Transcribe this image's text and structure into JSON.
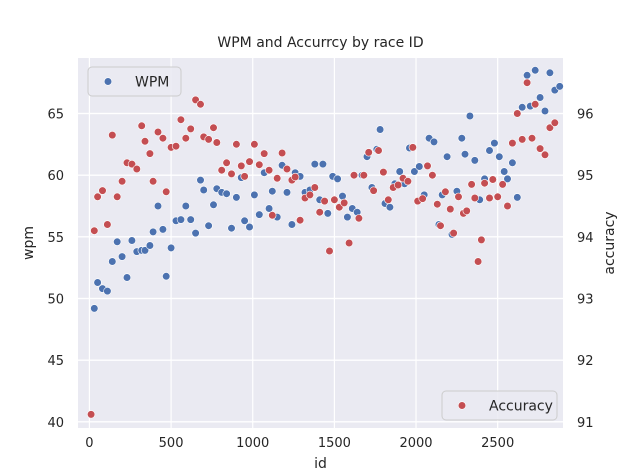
{
  "chart_data": {
    "type": "scatter",
    "title": "WPM and Accurrcy by race ID",
    "xlabel": "id",
    "ylabel_left": "wpm",
    "ylabel_right": "accuracy",
    "xlim": [
      -70,
      2900
    ],
    "ylim_left": [
      39.5,
      69.5
    ],
    "ylim_right": [
      90.9,
      96.9
    ],
    "x_ticks": [
      0,
      500,
      1000,
      1500,
      2000,
      2500
    ],
    "x_tick_labels": [
      "0",
      "500",
      "1000",
      "1500",
      "2000",
      "2500"
    ],
    "y_left_ticks": [
      40,
      45,
      50,
      55,
      60,
      65
    ],
    "y_left_tick_labels": [
      "40",
      "45",
      "50",
      "55",
      "60",
      "65"
    ],
    "y_right_ticks": [
      91,
      92,
      93,
      94,
      95,
      96
    ],
    "y_right_tick_labels": [
      "91",
      "92",
      "93",
      "94",
      "95",
      "96"
    ],
    "grid": true,
    "background": "#eaeaf2",
    "series": [
      {
        "name": "WPM",
        "axis": "left",
        "color": "#4c72b0",
        "legend_position": "top-left",
        "points": [
          [
            30,
            49.2
          ],
          [
            50,
            51.3
          ],
          [
            80,
            50.8
          ],
          [
            110,
            50.6
          ],
          [
            140,
            53.0
          ],
          [
            170,
            54.6
          ],
          [
            200,
            53.4
          ],
          [
            230,
            51.7
          ],
          [
            260,
            54.7
          ],
          [
            290,
            53.8
          ],
          [
            320,
            53.9
          ],
          [
            340,
            53.9
          ],
          [
            370,
            54.3
          ],
          [
            390,
            55.4
          ],
          [
            420,
            57.5
          ],
          [
            450,
            55.6
          ],
          [
            470,
            51.8
          ],
          [
            500,
            54.1
          ],
          [
            530,
            56.3
          ],
          [
            560,
            56.4
          ],
          [
            590,
            57.5
          ],
          [
            620,
            56.4
          ],
          [
            650,
            55.3
          ],
          [
            680,
            59.6
          ],
          [
            700,
            58.8
          ],
          [
            730,
            55.9
          ],
          [
            760,
            57.6
          ],
          [
            780,
            58.9
          ],
          [
            810,
            58.6
          ],
          [
            840,
            58.5
          ],
          [
            870,
            55.7
          ],
          [
            900,
            58.2
          ],
          [
            930,
            59.8
          ],
          [
            950,
            56.3
          ],
          [
            980,
            55.8
          ],
          [
            1010,
            58.4
          ],
          [
            1040,
            56.8
          ],
          [
            1070,
            60.2
          ],
          [
            1100,
            57.3
          ],
          [
            1120,
            58.7
          ],
          [
            1150,
            56.6
          ],
          [
            1180,
            60.8
          ],
          [
            1210,
            58.6
          ],
          [
            1240,
            56.0
          ],
          [
            1260,
            60.2
          ],
          [
            1290,
            59.9
          ],
          [
            1320,
            58.6
          ],
          [
            1350,
            58.8
          ],
          [
            1380,
            60.9
          ],
          [
            1410,
            58.0
          ],
          [
            1430,
            60.9
          ],
          [
            1460,
            56.9
          ],
          [
            1490,
            59.9
          ],
          [
            1520,
            59.7
          ],
          [
            1550,
            58.3
          ],
          [
            1580,
            56.6
          ],
          [
            1610,
            57.3
          ],
          [
            1640,
            57.0
          ],
          [
            1670,
            60.0
          ],
          [
            1700,
            61.5
          ],
          [
            1730,
            59.0
          ],
          [
            1760,
            62.1
          ],
          [
            1780,
            63.7
          ],
          [
            1810,
            57.7
          ],
          [
            1840,
            57.4
          ],
          [
            1870,
            59.3
          ],
          [
            1900,
            60.3
          ],
          [
            1930,
            59.3
          ],
          [
            1960,
            62.2
          ],
          [
            1990,
            60.3
          ],
          [
            2020,
            60.7
          ],
          [
            2050,
            58.4
          ],
          [
            2080,
            63.0
          ],
          [
            2110,
            62.7
          ],
          [
            2140,
            56.0
          ],
          [
            2160,
            58.4
          ],
          [
            2190,
            61.5
          ],
          [
            2220,
            55.2
          ],
          [
            2250,
            58.7
          ],
          [
            2280,
            63.0
          ],
          [
            2300,
            61.7
          ],
          [
            2330,
            64.8
          ],
          [
            2360,
            61.2
          ],
          [
            2390,
            58.0
          ],
          [
            2420,
            59.7
          ],
          [
            2450,
            62.0
          ],
          [
            2480,
            62.6
          ],
          [
            2510,
            61.5
          ],
          [
            2540,
            60.3
          ],
          [
            2560,
            59.7
          ],
          [
            2590,
            61.0
          ],
          [
            2620,
            58.2
          ],
          [
            2650,
            65.5
          ],
          [
            2680,
            68.1
          ],
          [
            2700,
            65.6
          ],
          [
            2730,
            68.5
          ],
          [
            2760,
            66.3
          ],
          [
            2790,
            65.2
          ],
          [
            2820,
            68.3
          ],
          [
            2850,
            66.9
          ],
          [
            2880,
            67.2
          ]
        ]
      },
      {
        "name": "Accuracy",
        "axis": "right",
        "color": "#c44e52",
        "legend_position": "bottom-right",
        "points": [
          [
            10,
            91.12
          ],
          [
            30,
            94.1
          ],
          [
            50,
            94.65
          ],
          [
            80,
            94.75
          ],
          [
            110,
            94.2
          ],
          [
            140,
            95.65
          ],
          [
            170,
            94.65
          ],
          [
            200,
            94.9
          ],
          [
            230,
            95.2
          ],
          [
            260,
            95.18
          ],
          [
            290,
            95.1
          ],
          [
            320,
            95.8
          ],
          [
            340,
            95.55
          ],
          [
            370,
            95.35
          ],
          [
            390,
            94.9
          ],
          [
            420,
            95.7
          ],
          [
            450,
            95.6
          ],
          [
            470,
            94.73
          ],
          [
            500,
            95.45
          ],
          [
            530,
            95.47
          ],
          [
            560,
            95.9
          ],
          [
            590,
            95.6
          ],
          [
            620,
            95.75
          ],
          [
            650,
            96.22
          ],
          [
            680,
            96.15
          ],
          [
            700,
            95.62
          ],
          [
            730,
            95.58
          ],
          [
            760,
            95.77
          ],
          [
            780,
            95.53
          ],
          [
            810,
            95.08
          ],
          [
            840,
            95.2
          ],
          [
            870,
            95.02
          ],
          [
            900,
            95.5
          ],
          [
            930,
            95.15
          ],
          [
            950,
            94.98
          ],
          [
            980,
            95.22
          ],
          [
            1010,
            95.5
          ],
          [
            1040,
            95.17
          ],
          [
            1070,
            95.35
          ],
          [
            1100,
            95.08
          ],
          [
            1120,
            94.35
          ],
          [
            1150,
            94.95
          ],
          [
            1180,
            95.36
          ],
          [
            1210,
            95.1
          ],
          [
            1240,
            94.92
          ],
          [
            1260,
            94.97
          ],
          [
            1290,
            94.27
          ],
          [
            1320,
            94.63
          ],
          [
            1350,
            94.68
          ],
          [
            1380,
            94.8
          ],
          [
            1410,
            94.4
          ],
          [
            1440,
            94.58
          ],
          [
            1470,
            93.77
          ],
          [
            1500,
            94.6
          ],
          [
            1530,
            94.48
          ],
          [
            1560,
            94.55
          ],
          [
            1590,
            93.9
          ],
          [
            1620,
            95.0
          ],
          [
            1650,
            94.3
          ],
          [
            1680,
            95.0
          ],
          [
            1710,
            95.37
          ],
          [
            1740,
            94.75
          ],
          [
            1770,
            95.4
          ],
          [
            1800,
            95.05
          ],
          [
            1830,
            94.6
          ],
          [
            1860,
            94.8
          ],
          [
            1890,
            94.84
          ],
          [
            1920,
            94.95
          ],
          [
            1950,
            94.9
          ],
          [
            1980,
            95.45
          ],
          [
            2010,
            94.58
          ],
          [
            2040,
            94.62
          ],
          [
            2070,
            95.15
          ],
          [
            2100,
            95.0
          ],
          [
            2130,
            94.53
          ],
          [
            2150,
            94.18
          ],
          [
            2180,
            94.73
          ],
          [
            2210,
            94.45
          ],
          [
            2230,
            94.06
          ],
          [
            2260,
            94.65
          ],
          [
            2290,
            94.38
          ],
          [
            2310,
            94.42
          ],
          [
            2340,
            94.85
          ],
          [
            2360,
            94.63
          ],
          [
            2380,
            93.6
          ],
          [
            2400,
            93.95
          ],
          [
            2420,
            94.87
          ],
          [
            2450,
            94.63
          ],
          [
            2470,
            94.93
          ],
          [
            2500,
            94.65
          ],
          [
            2530,
            94.85
          ],
          [
            2560,
            94.5
          ],
          [
            2590,
            95.52
          ],
          [
            2620,
            96.0
          ],
          [
            2650,
            95.58
          ],
          [
            2680,
            96.5
          ],
          [
            2710,
            95.6
          ],
          [
            2730,
            96.15
          ],
          [
            2760,
            95.43
          ],
          [
            2790,
            95.33
          ],
          [
            2820,
            95.77
          ],
          [
            2850,
            95.85
          ]
        ]
      }
    ]
  }
}
